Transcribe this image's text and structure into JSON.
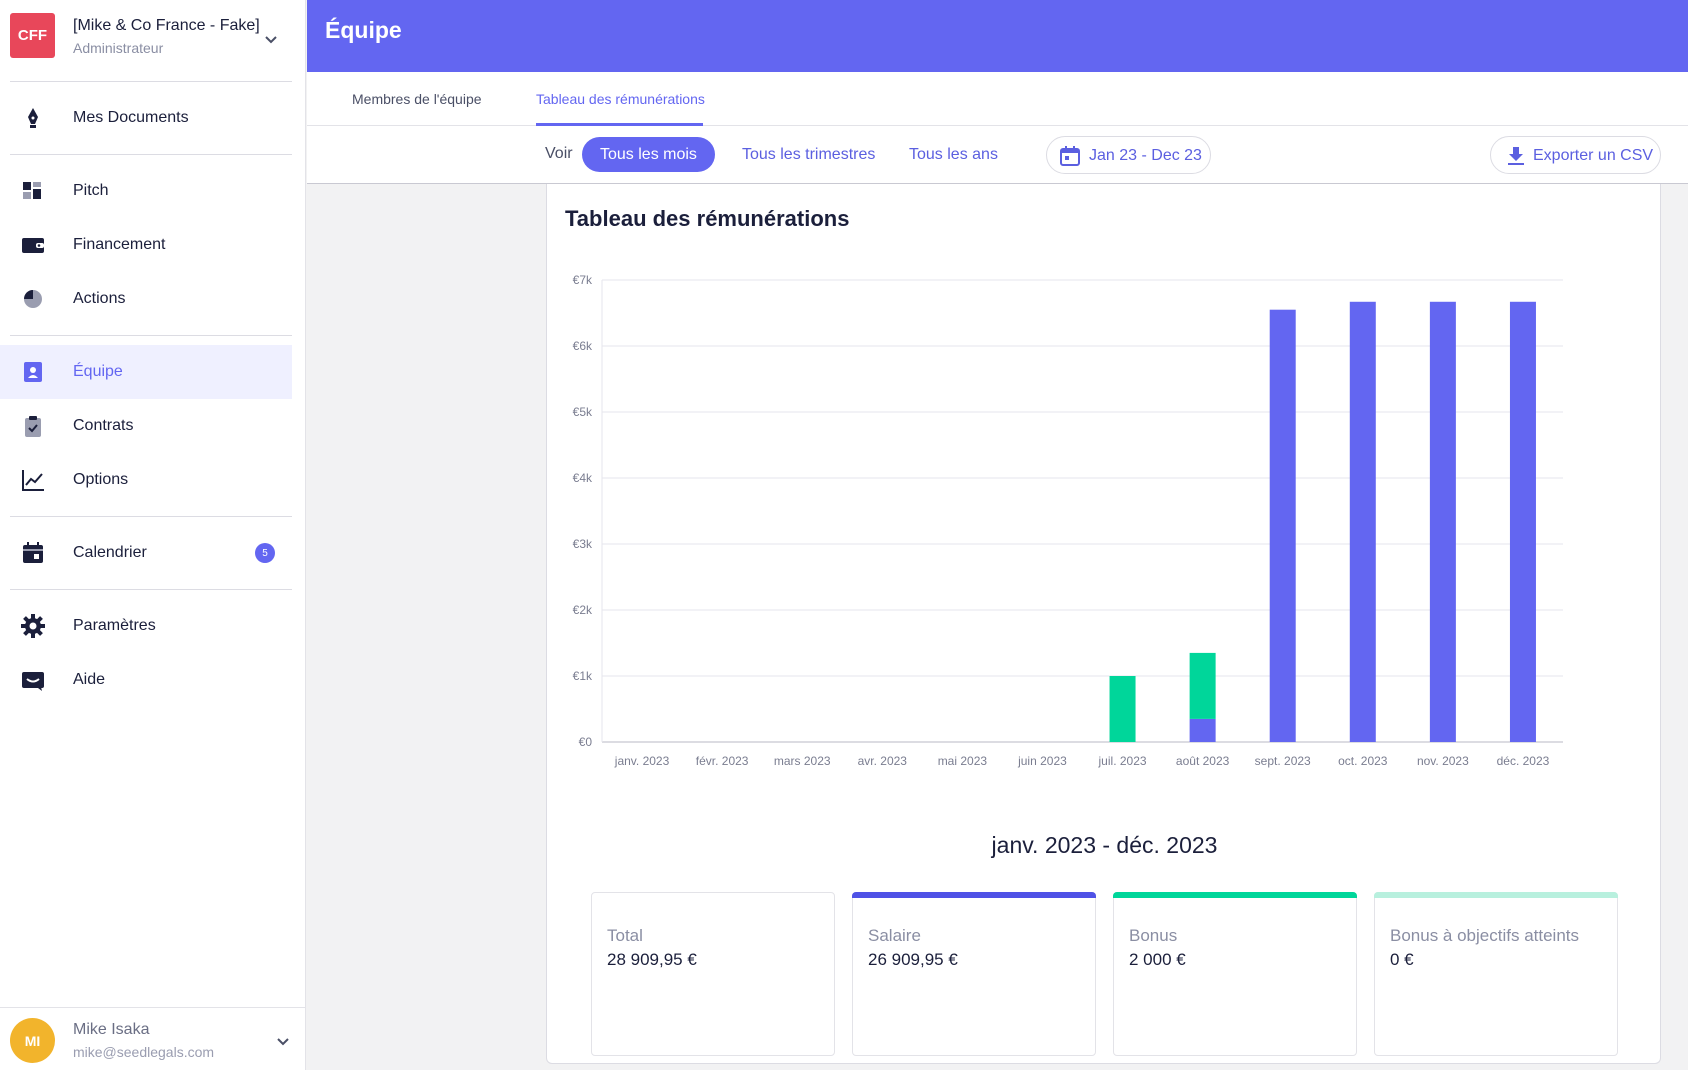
{
  "org": {
    "logo": "CFF",
    "name": "[Mike & Co France - Fake]",
    "role": "Administrateur"
  },
  "nav": [
    {
      "label": "Mes Documents",
      "icon": "pen-nib-icon"
    },
    {
      "label": "Pitch",
      "icon": "dashboard-icon"
    },
    {
      "label": "Financement",
      "icon": "wallet-icon"
    },
    {
      "label": "Actions",
      "icon": "pie-chart-icon"
    },
    {
      "label": "Équipe",
      "icon": "contact-card-icon"
    },
    {
      "label": "Contrats",
      "icon": "clipboard-check-icon"
    },
    {
      "label": "Options",
      "icon": "line-chart-icon"
    },
    {
      "label": "Calendrier",
      "icon": "calendar-icon",
      "badge": "5"
    },
    {
      "label": "Paramètres",
      "icon": "gear-icon"
    },
    {
      "label": "Aide",
      "icon": "message-icon"
    }
  ],
  "user": {
    "initials": "MI",
    "name": "Mike Isaka",
    "email": "mike@seedlegals.com"
  },
  "header": {
    "title": "Équipe"
  },
  "tabs": [
    {
      "label": "Membres de l'équipe"
    },
    {
      "label": "Tableau des rémunérations"
    }
  ],
  "toolbar": {
    "voir": "Voir",
    "periods": [
      "Tous les mois",
      "Tous les trimestres",
      "Tous les ans"
    ],
    "date_range": "Jan 23 - Dec 23",
    "export": "Exporter un CSV"
  },
  "card": {
    "title": "Tableau des rémunérations",
    "range_title": "janv. 2023 - déc. 2023"
  },
  "colors": {
    "accent": "#6366f1",
    "salary": "#6366f1",
    "bonus": "#00d69a",
    "objectives_bonus": "#b8f0de"
  },
  "chart_data": {
    "type": "bar",
    "stacked": true,
    "categories": [
      "janv. 2023",
      "févr. 2023",
      "mars 2023",
      "avr. 2023",
      "mai 2023",
      "juin 2023",
      "juil. 2023",
      "août 2023",
      "sept. 2023",
      "oct. 2023",
      "nov. 2023",
      "déc. 2023"
    ],
    "series": [
      {
        "name": "Salaire",
        "values": [
          0,
          0,
          0,
          0,
          0,
          0,
          0,
          350,
          6550,
          6670,
          6670,
          6670
        ]
      },
      {
        "name": "Bonus",
        "values": [
          0,
          0,
          0,
          0,
          0,
          0,
          1000,
          1000,
          0,
          0,
          0,
          0
        ]
      }
    ],
    "ylim": [
      0,
      7000
    ],
    "yticks": [
      "€0",
      "€1k",
      "€2k",
      "€3k",
      "€4k",
      "€5k",
      "€6k",
      "€7k"
    ],
    "grid": true
  },
  "stats": [
    {
      "label": "Total",
      "value": "28 909,95 €"
    },
    {
      "label": "Salaire",
      "value": "26 909,95 €"
    },
    {
      "label": "Bonus",
      "value": "2 000 €"
    },
    {
      "label": "Bonus à objectifs atteints",
      "value": "0 €"
    }
  ]
}
